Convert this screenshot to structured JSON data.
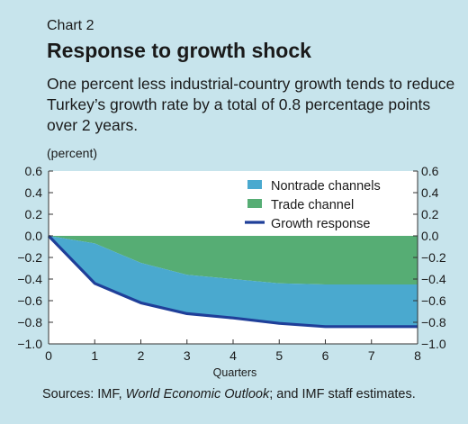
{
  "header": {
    "chart_number": "Chart 2",
    "title": "Response to growth shock",
    "subtitle": "One percent less industrial-country growth tends to reduce Turkey’s growth rate by a total of 0.8 percentage points over 2 years.",
    "units": "(percent)"
  },
  "footer": {
    "source_prefix": "Sources: IMF, ",
    "source_italic": "World Economic Outlook",
    "source_suffix": "; and IMF staff estimates."
  },
  "colors": {
    "background": "#c7e4ec",
    "plot_background": "#ffffff",
    "nontrade": "#4aa9cf",
    "trade": "#56ad74",
    "growth_line": "#1f3f99"
  },
  "chart_data": {
    "type": "area",
    "xlabel": "Quarters",
    "ylabel": "",
    "x": [
      0,
      1,
      2,
      3,
      4,
      5,
      6,
      7,
      8
    ],
    "xticks": [
      "0",
      "1",
      "2",
      "3",
      "4",
      "5",
      "6",
      "7",
      "8"
    ],
    "ylim": [
      -1.0,
      0.6
    ],
    "yticks": [
      "0.6",
      "0.4",
      "0.2",
      "0.0",
      "−0.2",
      "−0.4",
      "−0.6",
      "−0.8",
      "−1.0"
    ],
    "ytick_values": [
      0.6,
      0.4,
      0.2,
      0.0,
      -0.2,
      -0.4,
      -0.6,
      -0.8,
      -1.0
    ],
    "grid": false,
    "legend_position": "top-right",
    "series": [
      {
        "name": "Nontrade channels",
        "kind": "stacked-area",
        "color_key": "nontrade",
        "values": [
          0.0,
          -0.37,
          -0.37,
          -0.36,
          -0.36,
          -0.37,
          -0.39,
          -0.39,
          -0.39
        ]
      },
      {
        "name": "Trade channel",
        "kind": "stacked-area",
        "color_key": "trade",
        "values": [
          0.0,
          -0.07,
          -0.25,
          -0.36,
          -0.4,
          -0.44,
          -0.45,
          -0.45,
          -0.45
        ]
      },
      {
        "name": "Growth response",
        "kind": "line",
        "color_key": "growth_line",
        "values": [
          0.0,
          -0.44,
          -0.62,
          -0.72,
          -0.76,
          -0.81,
          -0.84,
          -0.84,
          -0.84
        ]
      }
    ]
  }
}
